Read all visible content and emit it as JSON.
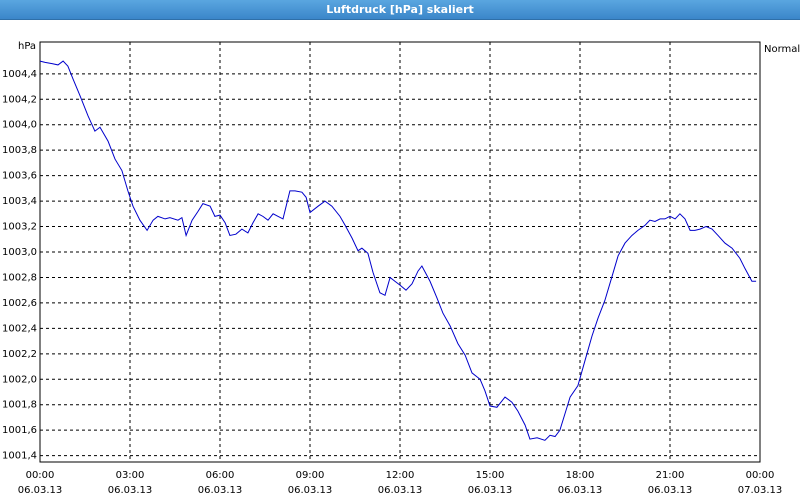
{
  "chart_data": {
    "type": "line",
    "title": "Luftdruck [hPa] skaliert",
    "ylabel": "hPa",
    "x": [
      0,
      0.17,
      0.4,
      0.6,
      0.77,
      0.93,
      1.1,
      1.33,
      1.6,
      1.83,
      2,
      2.27,
      2.5,
      2.73,
      2.93,
      3.1,
      3.33,
      3.57,
      3.77,
      3.93,
      4.17,
      4.33,
      4.6,
      4.73,
      4.87,
      5.07,
      5.27,
      5.43,
      5.67,
      5.83,
      6,
      6.17,
      6.33,
      6.53,
      6.73,
      6.93,
      7.1,
      7.27,
      7.43,
      7.6,
      7.77,
      7.93,
      8.1,
      8.33,
      8.5,
      8.73,
      8.87,
      9,
      9.27,
      9.5,
      9.73,
      10,
      10.17,
      10.4,
      10.6,
      10.73,
      10.93,
      11.1,
      11.33,
      11.5,
      11.67,
      11.83,
      12,
      12.2,
      12.4,
      12.6,
      12.73,
      13,
      13.23,
      13.43,
      13.67,
      13.93,
      14.17,
      14.4,
      14.67,
      14.83,
      15,
      15.23,
      15.5,
      15.73,
      15.93,
      16.17,
      16.33,
      16.57,
      16.83,
      17,
      17.17,
      17.33,
      17.5,
      17.67,
      17.93,
      18.17,
      18.4,
      18.6,
      18.83,
      19.07,
      19.27,
      19.5,
      19.73,
      19.93,
      20.17,
      20.33,
      20.5,
      20.67,
      20.83,
      21,
      21.17,
      21.33,
      21.5,
      21.67,
      21.83,
      22,
      22.2,
      22.4,
      22.6,
      22.83,
      23.07,
      23.33,
      23.5,
      23.73,
      23.87
    ],
    "series": [
      {
        "name": "Normal",
        "color": "#0000cc",
        "values": [
          1004.5,
          1004.49,
          1004.48,
          1004.47,
          1004.5,
          1004.46,
          1004.36,
          1004.23,
          1004.07,
          1003.95,
          1003.98,
          1003.87,
          1003.73,
          1003.64,
          1003.48,
          1003.36,
          1003.25,
          1003.17,
          1003.25,
          1003.28,
          1003.26,
          1003.27,
          1003.25,
          1003.27,
          1003.13,
          1003.25,
          1003.32,
          1003.38,
          1003.36,
          1003.28,
          1003.29,
          1003.23,
          1003.13,
          1003.14,
          1003.18,
          1003.15,
          1003.23,
          1003.3,
          1003.28,
          1003.25,
          1003.3,
          1003.28,
          1003.26,
          1003.48,
          1003.48,
          1003.47,
          1003.43,
          1003.31,
          1003.36,
          1003.4,
          1003.36,
          1003.28,
          1003.21,
          1003.11,
          1003.01,
          1003.03,
          1002.99,
          1002.84,
          1002.68,
          1002.66,
          1002.8,
          1002.77,
          1002.74,
          1002.7,
          1002.75,
          1002.85,
          1002.89,
          1002.77,
          1002.64,
          1002.52,
          1002.42,
          1002.28,
          1002.19,
          1002.05,
          1002.0,
          1001.91,
          1001.79,
          1001.78,
          1001.86,
          1001.82,
          1001.75,
          1001.64,
          1001.53,
          1001.54,
          1001.52,
          1001.56,
          1001.55,
          1001.6,
          1001.73,
          1001.86,
          1001.95,
          1002.15,
          1002.34,
          1002.48,
          1002.62,
          1002.81,
          1002.97,
          1003.07,
          1003.13,
          1003.17,
          1003.21,
          1003.25,
          1003.24,
          1003.26,
          1003.26,
          1003.28,
          1003.26,
          1003.3,
          1003.26,
          1003.17,
          1003.17,
          1003.18,
          1003.2,
          1003.18,
          1003.13,
          1003.07,
          1003.03,
          1002.95,
          1002.87,
          1002.77,
          1002.77
        ]
      }
    ],
    "xlim": [
      0,
      24
    ],
    "xticks": [
      {
        "value": 0,
        "label": "00:00\n06.03.13"
      },
      {
        "value": 3,
        "label": "03:00\n06.03.13"
      },
      {
        "value": 6,
        "label": "06:00\n06.03.13"
      },
      {
        "value": 9,
        "label": "09:00\n06.03.13"
      },
      {
        "value": 12,
        "label": "12:00\n06.03.13"
      },
      {
        "value": 15,
        "label": "15:00\n06.03.13"
      },
      {
        "value": 18,
        "label": "18:00\n06.03.13"
      },
      {
        "value": 21,
        "label": "21:00\n06.03.13"
      },
      {
        "value": 24,
        "label": "00:00\n07.03.13"
      }
    ],
    "ylim": [
      1001.35,
      1004.65
    ],
    "yticks": [
      {
        "value": 1001.4,
        "label": "1001,4"
      },
      {
        "value": 1001.6,
        "label": "1001,6"
      },
      {
        "value": 1001.8,
        "label": "1001,8"
      },
      {
        "value": 1002.0,
        "label": "1002,0"
      },
      {
        "value": 1002.2,
        "label": "1002,2"
      },
      {
        "value": 1002.4,
        "label": "1002,4"
      },
      {
        "value": 1002.6,
        "label": "1002,6"
      },
      {
        "value": 1002.8,
        "label": "1002,8"
      },
      {
        "value": 1003.0,
        "label": "1003,0"
      },
      {
        "value": 1003.2,
        "label": "1003,2"
      },
      {
        "value": 1003.4,
        "label": "1003,4"
      },
      {
        "value": 1003.6,
        "label": "1003,6"
      },
      {
        "value": 1003.8,
        "label": "1003,8"
      },
      {
        "value": 1004.0,
        "label": "1004,0"
      },
      {
        "value": 1004.2,
        "label": "1004,2"
      },
      {
        "value": 1004.4,
        "label": "1004,4"
      }
    ],
    "grid": true
  }
}
